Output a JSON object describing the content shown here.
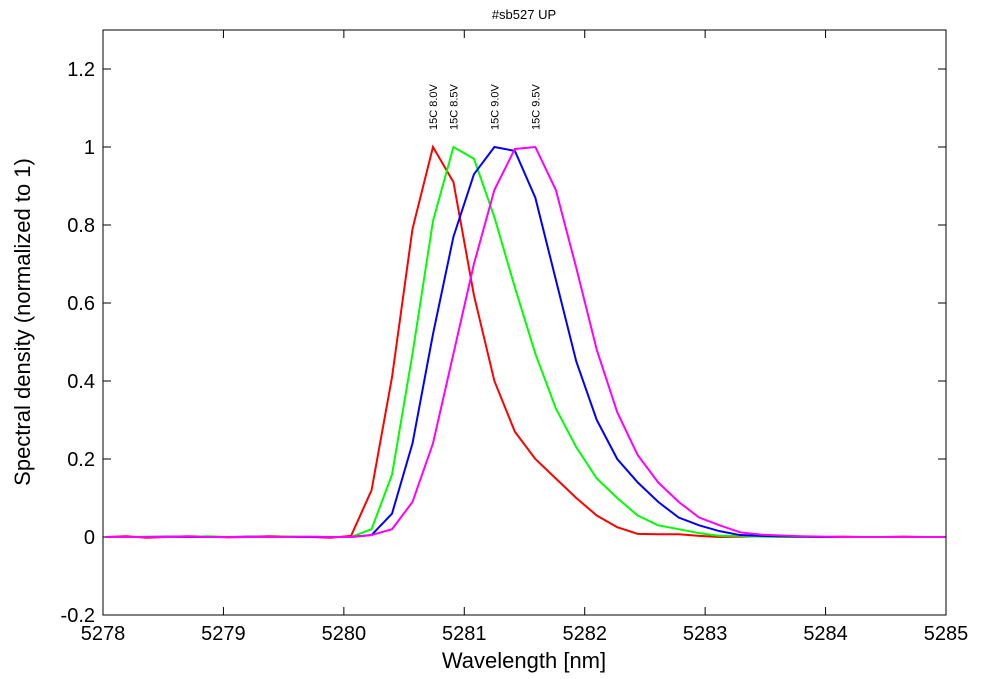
{
  "chart_data": {
    "type": "line",
    "title": "#sb527 UP",
    "x_label": "Wavelength [nm]",
    "y_label": "Spectral density (normalized to 1)",
    "x": [
      5278.02,
      5278.19,
      5278.36,
      5278.53,
      5278.7,
      5278.87,
      5279.04,
      5279.21,
      5279.38,
      5279.55,
      5279.72,
      5279.89,
      5280.06,
      5280.23,
      5280.4,
      5280.57,
      5280.74,
      5280.91,
      5281.08,
      5281.25,
      5281.42,
      5281.59,
      5281.76,
      5281.93,
      5282.1,
      5282.27,
      5282.44,
      5282.61,
      5282.78,
      5282.95,
      5283.12,
      5283.29,
      5283.46,
      5283.63,
      5283.8,
      5283.97,
      5284.14,
      5284.31,
      5284.48,
      5284.65,
      5284.82,
      5284.99
    ],
    "series": [
      {
        "name": "15C 8.0V",
        "color": "#ff0000",
        "values": [
          0,
          0.002,
          -0.002,
          0,
          0.002,
          0.001,
          -0.001,
          0,
          0.002,
          0.001,
          0,
          -0.002,
          0.003,
          0.12,
          0.41,
          0.79,
          1.0,
          0.91,
          0.62,
          0.4,
          0.27,
          0.2,
          0.15,
          0.1,
          0.055,
          0.025,
          0.008,
          0.007,
          0.007,
          0.003,
          0,
          0.001,
          0.002,
          0.001,
          0,
          0,
          0.001,
          0,
          0,
          0.001,
          0,
          0
        ]
      },
      {
        "name": "15C 8.5V",
        "color": "#00ff00",
        "values": [
          0,
          0,
          0.001,
          0,
          0,
          0.002,
          0,
          0,
          0,
          0.001,
          0,
          0,
          0,
          0.02,
          0.16,
          0.47,
          0.81,
          1.0,
          0.97,
          0.82,
          0.64,
          0.47,
          0.33,
          0.23,
          0.15,
          0.1,
          0.055,
          0.03,
          0.02,
          0.01,
          0.003,
          0.003,
          0.001,
          0,
          0,
          0,
          0,
          0,
          0,
          0,
          0,
          0
        ]
      },
      {
        "name": "15C 9.0V",
        "color": "#0000ff",
        "values": [
          0,
          0,
          0,
          0.001,
          0,
          0,
          0,
          0.001,
          0,
          0,
          0,
          0,
          0,
          0.005,
          0.06,
          0.24,
          0.52,
          0.77,
          0.93,
          1.0,
          0.99,
          0.87,
          0.66,
          0.45,
          0.3,
          0.2,
          0.14,
          0.09,
          0.05,
          0.03,
          0.015,
          0.005,
          0.003,
          0.002,
          0.001,
          0,
          0,
          0,
          0,
          0,
          0,
          0
        ]
      },
      {
        "name": "15C 9.5V",
        "color": "#ff00ff",
        "values": [
          0,
          0,
          0,
          0,
          0.001,
          0,
          0,
          0,
          0,
          0,
          0.001,
          0,
          0,
          0.005,
          0.02,
          0.09,
          0.24,
          0.47,
          0.7,
          0.89,
          0.995,
          1.0,
          0.89,
          0.69,
          0.48,
          0.32,
          0.21,
          0.14,
          0.09,
          0.05,
          0.03,
          0.012,
          0.006,
          0.004,
          0.002,
          0.001,
          0,
          0,
          0,
          0,
          0,
          0
        ]
      }
    ],
    "xlim": [
      5278,
      5285
    ],
    "xticks": [
      5278,
      5279,
      5280,
      5281,
      5282,
      5283,
      5284,
      5285
    ],
    "ylim": [
      -0.2,
      1.3
    ],
    "yticks": [
      -0.2,
      0,
      0.2,
      0.4,
      0.6,
      0.8,
      1,
      1.2
    ],
    "grid": false
  }
}
